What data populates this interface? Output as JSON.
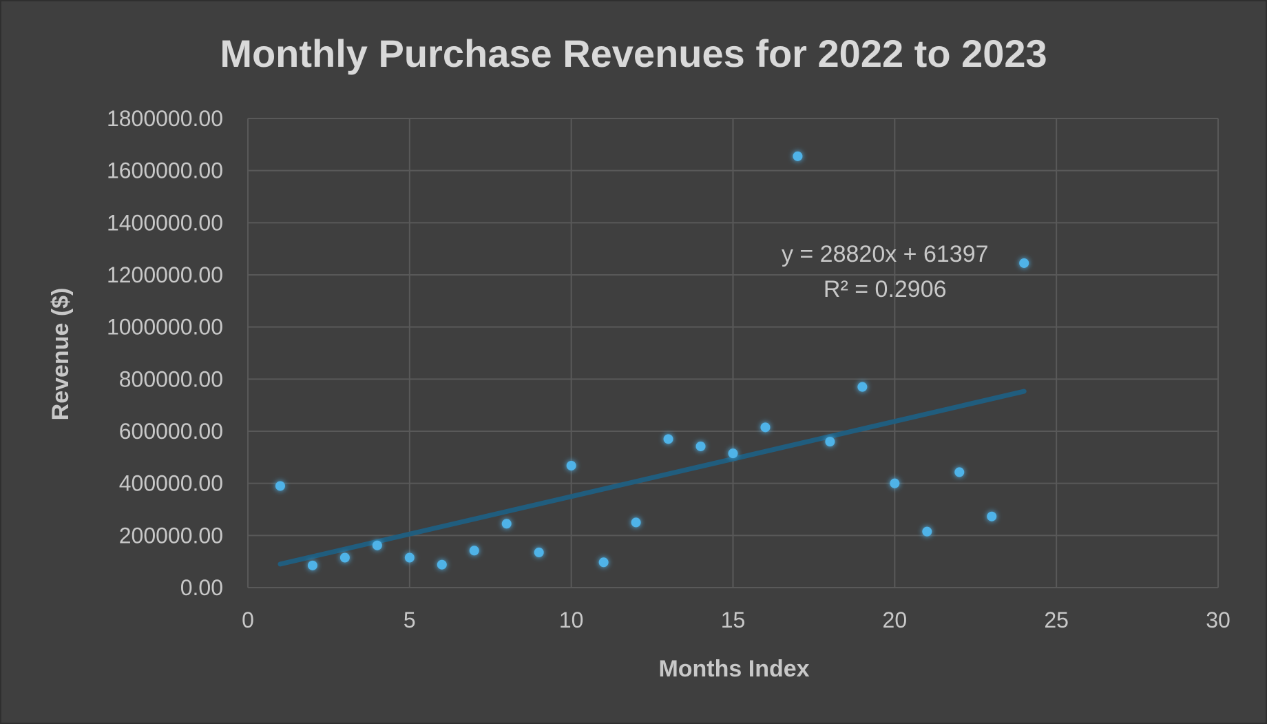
{
  "chart_data": {
    "type": "scatter",
    "title": "Monthly Purchase Revenues for 2022 to 2023",
    "xlabel": "Months Index",
    "ylabel": "Revenue ($)",
    "xlim": [
      0,
      30
    ],
    "ylim": [
      0,
      1800000
    ],
    "x_ticks": [
      0,
      5,
      10,
      15,
      20,
      25,
      30
    ],
    "y_ticks": [
      0,
      200000,
      400000,
      600000,
      800000,
      1000000,
      1200000,
      1400000,
      1600000,
      1800000
    ],
    "x_tick_labels": [
      "0",
      "5",
      "10",
      "15",
      "20",
      "25",
      "30"
    ],
    "y_tick_labels": [
      "0.00",
      "200000.00",
      "400000.00",
      "600000.00",
      "800000.00",
      "1000000.00",
      "1200000.00",
      "1400000.00",
      "1600000.00",
      "1800000.00"
    ],
    "grid": true,
    "series": [
      {
        "name": "Revenue",
        "color": "#4fb3e8",
        "x": [
          1,
          2,
          3,
          4,
          5,
          6,
          7,
          8,
          9,
          10,
          11,
          12,
          13,
          14,
          15,
          16,
          17,
          18,
          19,
          20,
          21,
          22,
          23,
          24
        ],
        "y": [
          390000,
          85000,
          115000,
          162000,
          115000,
          88000,
          142000,
          245000,
          135000,
          468000,
          97000,
          250000,
          570000,
          542000,
          515000,
          615000,
          1655000,
          560000,
          770000,
          400000,
          215000,
          443000,
          273000,
          1245000
        ]
      }
    ],
    "trendline": {
      "type": "linear",
      "slope": 28820,
      "intercept": 61397,
      "x_range": [
        1,
        24
      ],
      "color": "#1f5f82",
      "equation_label": "y = 28820x + 61397",
      "r2_label": "R² = 0.2906",
      "label_anchor": {
        "x": 19.7,
        "y": 1250000
      }
    }
  }
}
